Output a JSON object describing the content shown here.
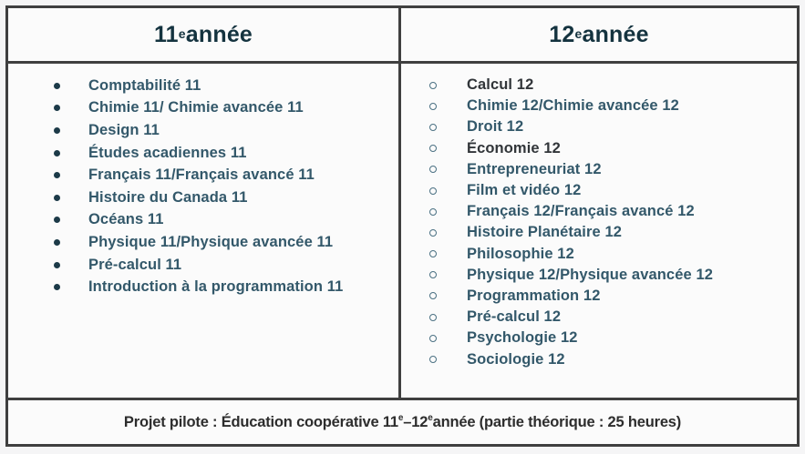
{
  "page": {
    "background": "#f5f5f6",
    "cell_background": "#fbfbfb",
    "border_color": "#3f3f3f"
  },
  "colors": {
    "header_text": "#14333f",
    "item_text_teal": "#33586a",
    "item_text_dark": "#313539",
    "bullet_fill": "#1c3a48",
    "bullet_ring": "#4a7082",
    "footer_text": "#2d2d2d"
  },
  "table": {
    "columns": [
      {
        "header": {
          "num": "11",
          "sup": "e",
          "rest": " année"
        },
        "bullet": "disc",
        "items": [
          {
            "text": "Comptabilité 11"
          },
          {
            "text": "Chimie 11/ Chimie avancée 11"
          },
          {
            "text": "Design 11"
          },
          {
            "text": "Études acadiennes 11"
          },
          {
            "text": "Français 11/Français avancé 11"
          },
          {
            "text": "Histoire du Canada 11"
          },
          {
            "text": "Océans 11"
          },
          {
            "text": "Physique 11/Physique avancée 11"
          },
          {
            "text": "Pré-calcul 11"
          },
          {
            "text": "Introduction à la programmation 11"
          }
        ]
      },
      {
        "header": {
          "num": "12",
          "sup": "e",
          "rest": " année"
        },
        "bullet": "circle",
        "items": [
          {
            "text": "Calcul 12",
            "emphasis": true
          },
          {
            "text": "Chimie 12/Chimie avancée 12"
          },
          {
            "text": "Droit 12"
          },
          {
            "text": "Économie 12",
            "emphasis": true
          },
          {
            "text": "Entrepreneuriat 12"
          },
          {
            "text": "Film et vidéo 12"
          },
          {
            "text": "Français 12/Français avancé 12"
          },
          {
            "text": "Histoire Planétaire 12"
          },
          {
            "text": "Philosophie 12"
          },
          {
            "text": "Physique 12/Physique avancée 12"
          },
          {
            "text": "Programmation 12"
          },
          {
            "text": "Pré-calcul 12"
          },
          {
            "text": "Psychologie 12"
          },
          {
            "text": "Sociologie 12"
          }
        ]
      }
    ],
    "footer": {
      "parts": [
        {
          "text": "Projet pilote : Éducation coopérative 11"
        },
        {
          "text": "e",
          "sup": true
        },
        {
          "text": "–12"
        },
        {
          "text": "e",
          "sup": true
        },
        {
          "text": " année (partie théorique : 25 heures)"
        }
      ]
    }
  }
}
